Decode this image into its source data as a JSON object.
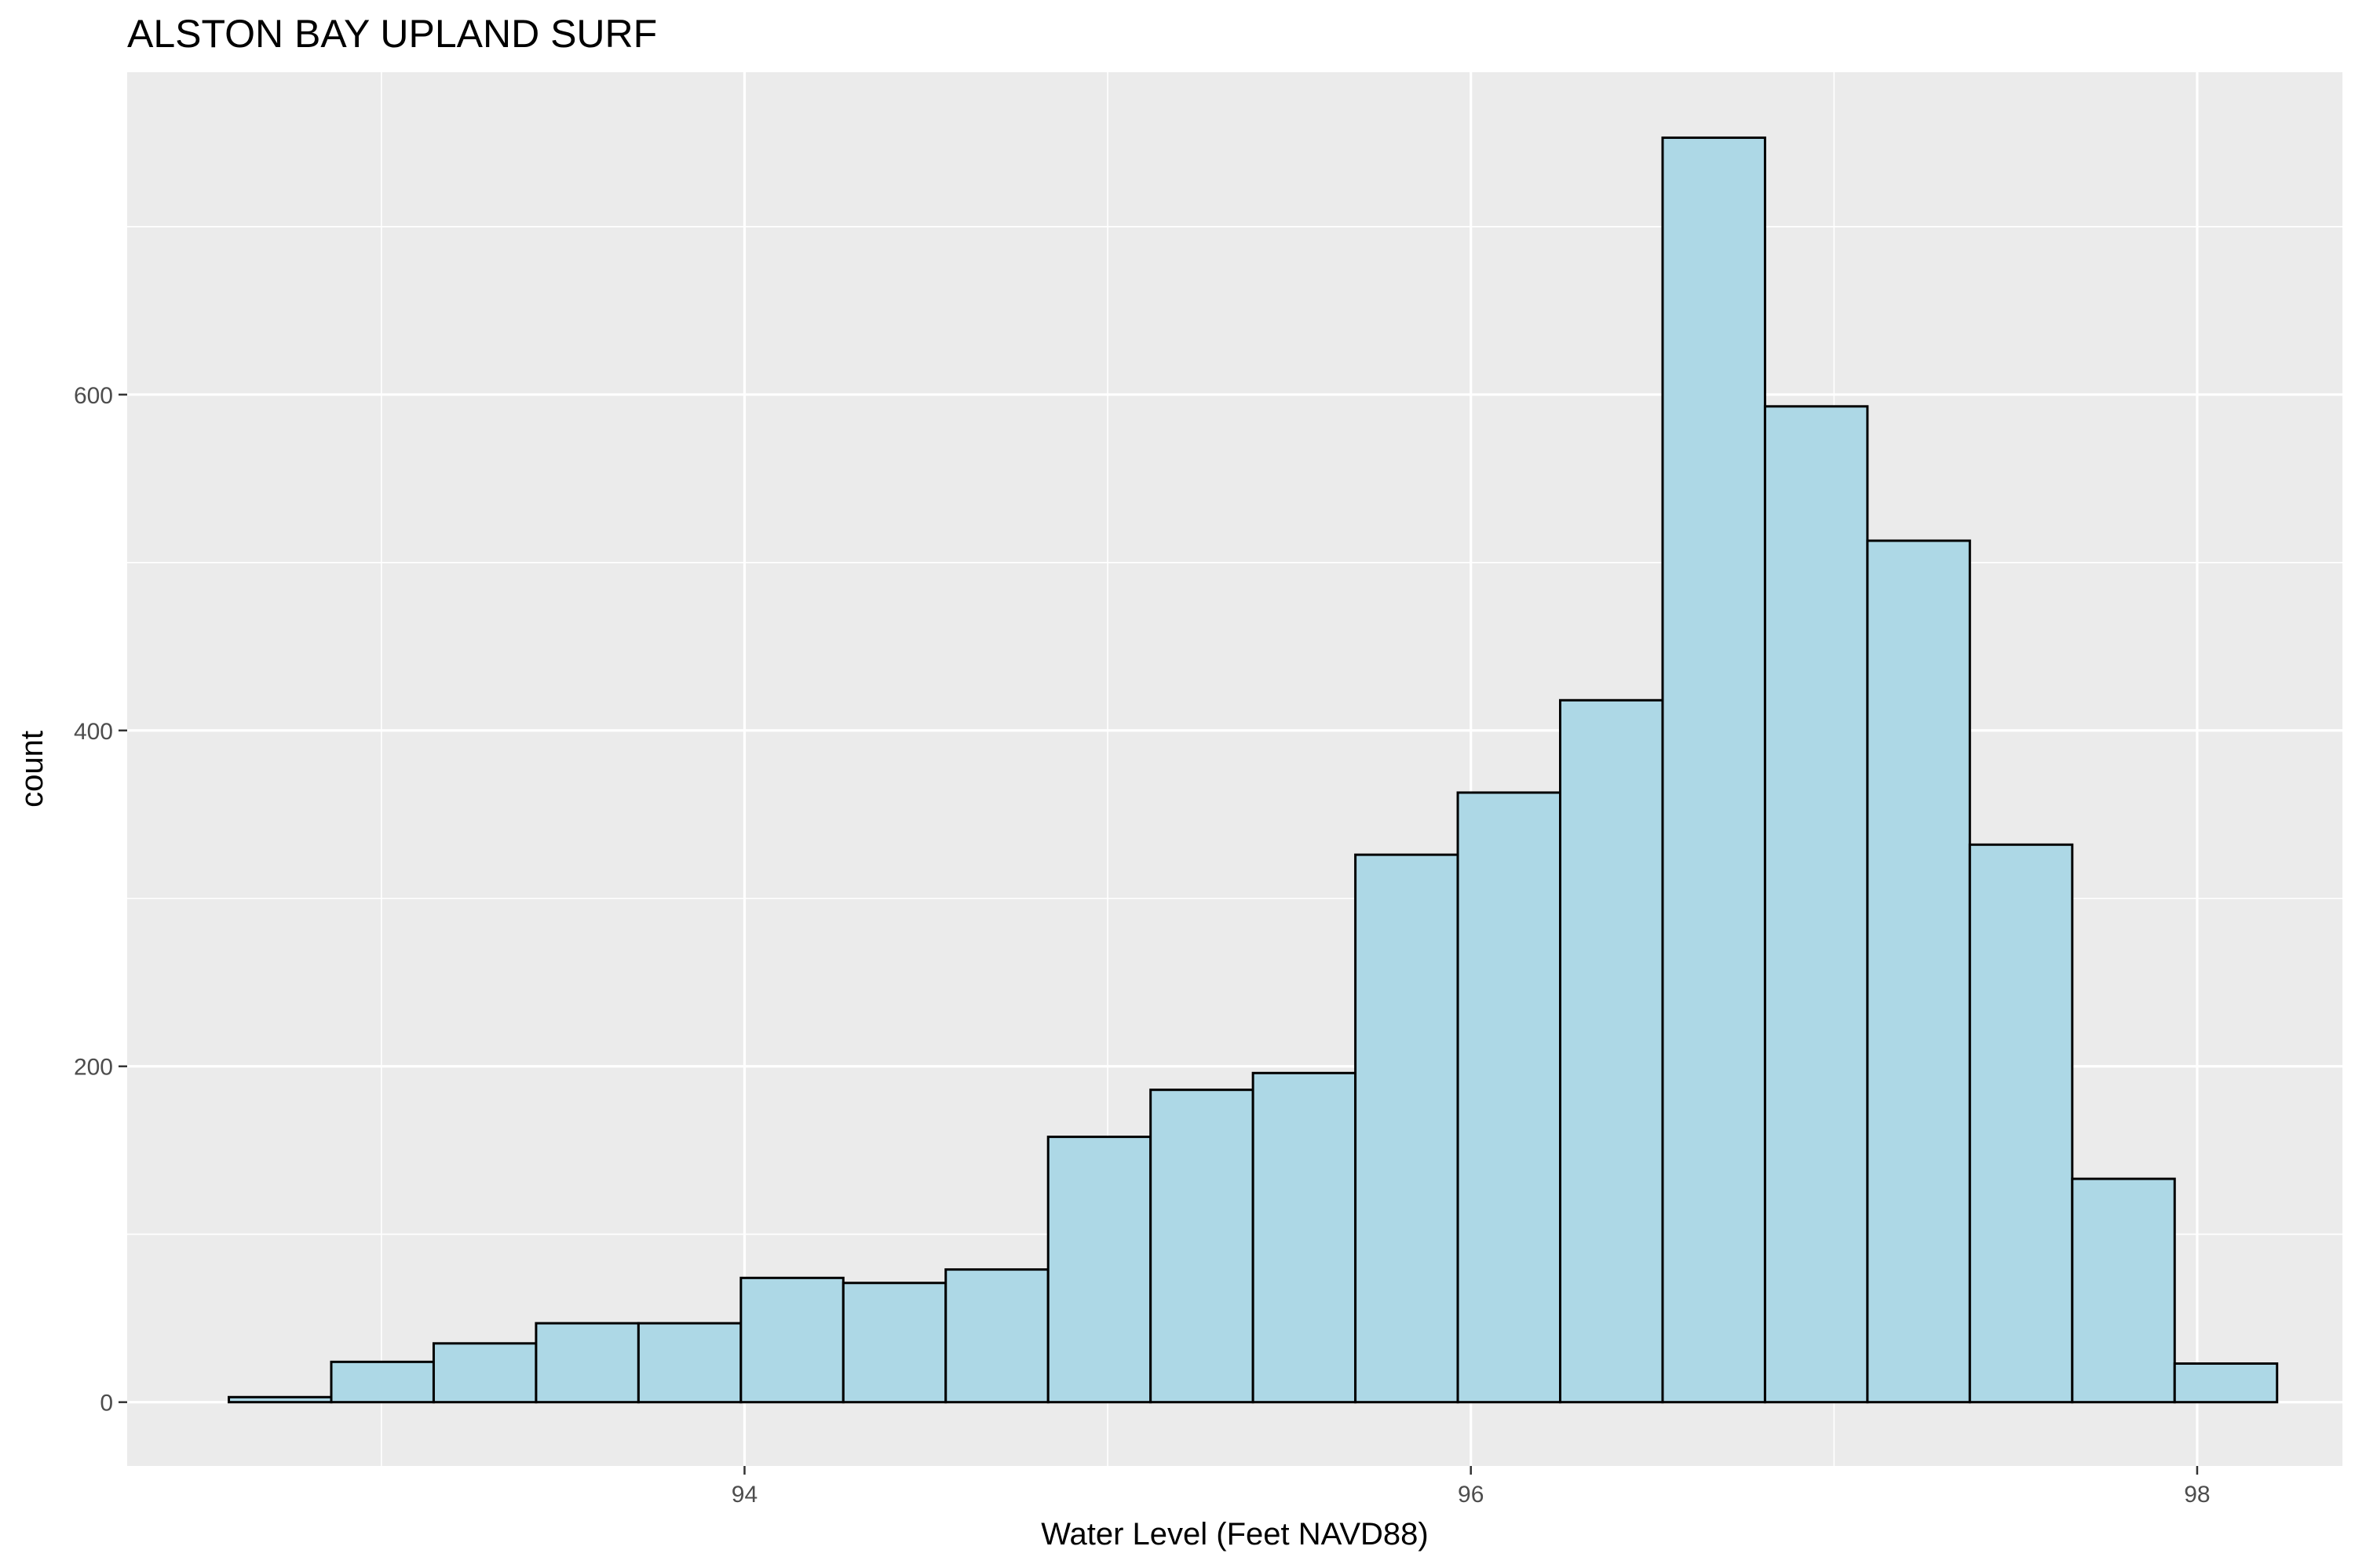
{
  "chart_data": {
    "type": "bar",
    "title": "ALSTON BAY UPLAND SURF",
    "xlabel": "Water Level (Feet NAVD88)",
    "ylabel": "count",
    "xlim": [
      92.3,
      98.4
    ],
    "ylim": [
      -38,
      792
    ],
    "x_ticks": [
      94,
      96,
      98
    ],
    "x_tick_labels": [
      "94",
      "96",
      "98"
    ],
    "y_ticks": [
      0,
      200,
      400,
      600
    ],
    "y_tick_labels": [
      "0",
      "200",
      "400",
      "600"
    ],
    "grid": true,
    "bin_edges": [
      92.58,
      92.862,
      93.144,
      93.426,
      93.708,
      93.99,
      94.272,
      94.554,
      94.836,
      95.118,
      95.4,
      95.682,
      95.964,
      96.246,
      96.528,
      96.81,
      97.092,
      97.374,
      97.656,
      97.938,
      98.22
    ],
    "values": [
      3,
      24,
      35,
      47,
      47,
      74,
      71,
      79,
      158,
      186,
      196,
      326,
      363,
      418,
      753,
      593,
      513,
      332,
      133,
      23
    ],
    "colors": {
      "fill": "#add8e6",
      "stroke": "#000000",
      "panel": "#ebebeb",
      "grid": "#ffffff"
    }
  }
}
